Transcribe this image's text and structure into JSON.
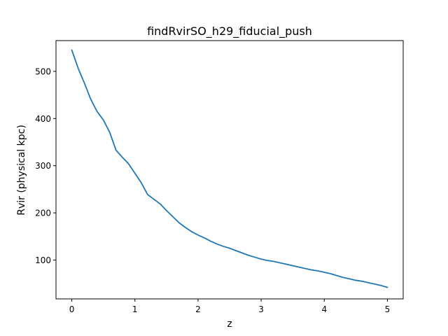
{
  "chart_data": {
    "type": "line",
    "title": "findRvirSO_h29_fiducial_push",
    "xlabel": "z",
    "ylabel": "Rvir (physical kpc)",
    "xlim": [
      -0.25,
      5.25
    ],
    "ylim": [
      17.6,
      565.2
    ],
    "xticks": [
      0,
      1,
      2,
      3,
      4,
      5
    ],
    "xtick_labels": [
      "0",
      "1",
      "2",
      "3",
      "4",
      "5"
    ],
    "yticks": [
      100,
      200,
      300,
      400,
      500
    ],
    "ytick_labels": [
      "100",
      "200",
      "300",
      "400",
      "500"
    ],
    "grid": false,
    "series": [
      {
        "color": "#1f77b4",
        "x": [
          0.0,
          0.1,
          0.2,
          0.3,
          0.4,
          0.5,
          0.6,
          0.7,
          0.8,
          0.9,
          1.0,
          1.1,
          1.2,
          1.3,
          1.4,
          1.5,
          1.6,
          1.7,
          1.8,
          1.9,
          2.0,
          2.1,
          2.2,
          2.3,
          2.4,
          2.5,
          2.6,
          2.7,
          2.8,
          2.9,
          3.0,
          3.1,
          3.2,
          3.3,
          3.4,
          3.5,
          3.6,
          3.7,
          3.8,
          3.9,
          4.0,
          4.1,
          4.2,
          4.3,
          4.4,
          4.5,
          4.6,
          4.7,
          4.8,
          4.9,
          5.0
        ],
        "y": [
          545,
          507,
          475,
          441,
          415,
          397,
          371,
          333,
          318,
          304,
          284,
          264,
          239,
          229,
          219,
          205,
          192,
          179,
          169,
          160,
          153,
          147,
          140,
          134,
          129,
          125,
          120,
          115,
          110,
          106,
          102,
          99,
          97,
          94,
          91,
          88,
          85,
          82,
          79,
          77,
          74,
          71,
          67,
          63,
          60,
          57,
          55,
          52,
          49,
          46,
          42
        ]
      }
    ]
  }
}
